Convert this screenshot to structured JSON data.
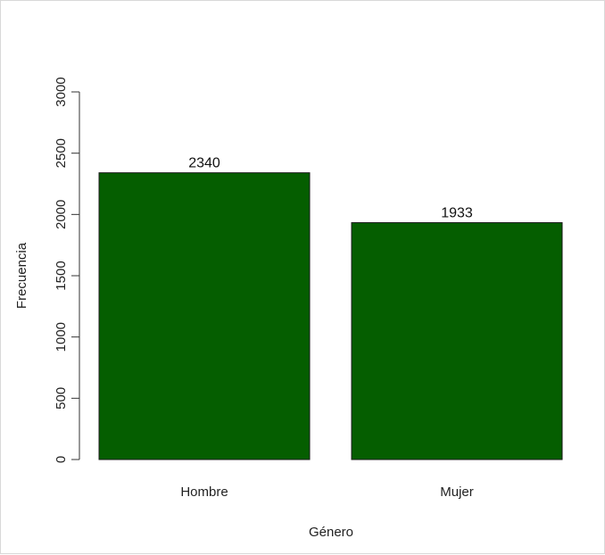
{
  "chart_data": {
    "type": "bar",
    "categories": [
      "Hombre",
      "Mujer"
    ],
    "values": [
      2340,
      1933
    ],
    "data_labels": [
      "2340",
      "1933"
    ],
    "xlabel": "Género",
    "ylabel": "Frecuencia",
    "ylim": [
      0,
      3000
    ],
    "yticks": [
      0,
      500,
      1000,
      1500,
      2000,
      2500,
      3000
    ],
    "ytick_labels": [
      "0",
      "500",
      "1000",
      "1500",
      "2000",
      "2500",
      "3000"
    ],
    "grid": false,
    "legend": "none",
    "bar_color": "#055e00",
    "bar_edge_color": "#1a1a1a"
  }
}
